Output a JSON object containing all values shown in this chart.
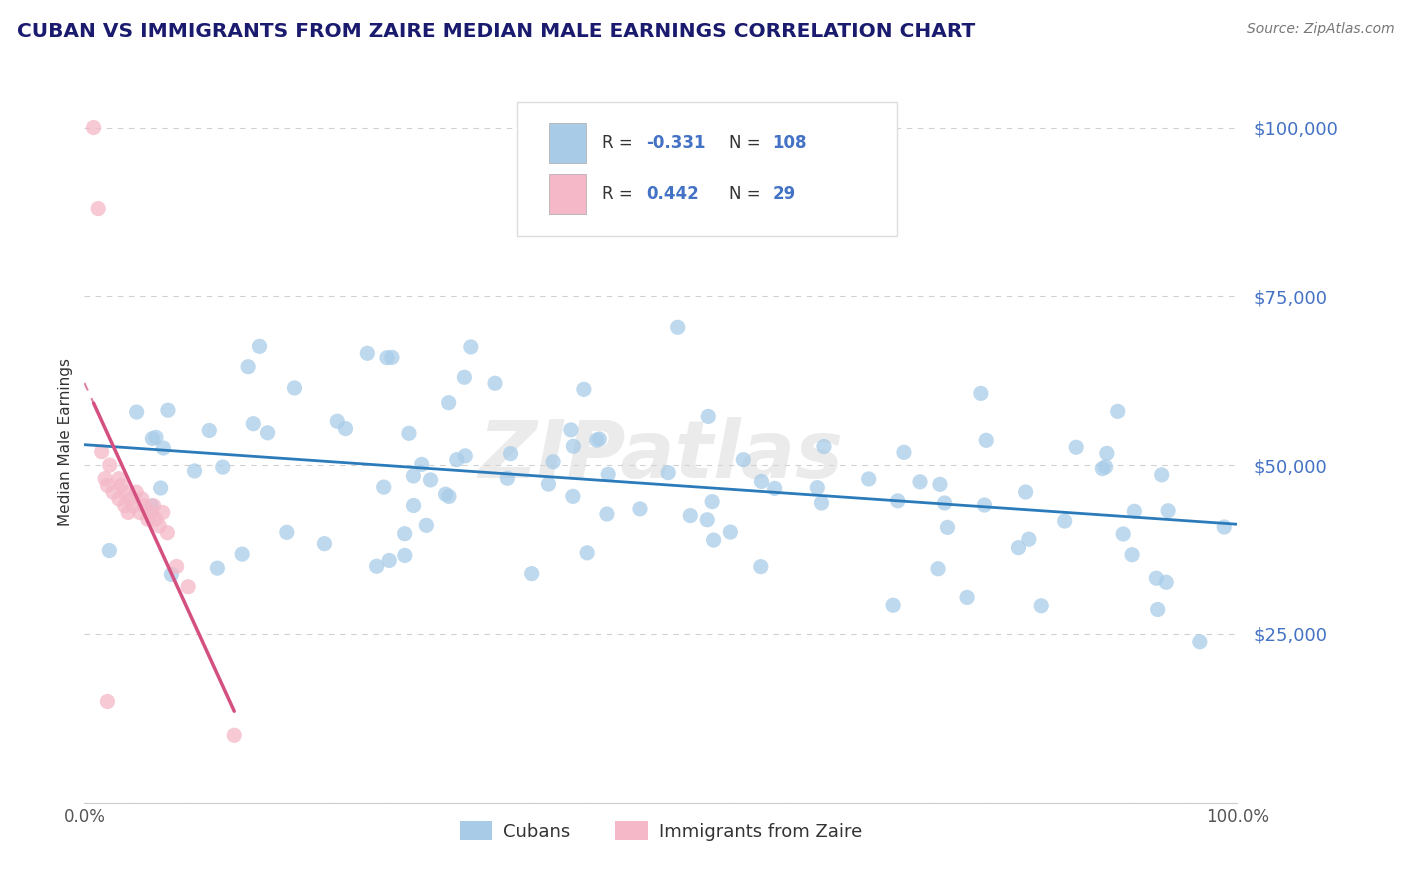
{
  "title": "CUBAN VS IMMIGRANTS FROM ZAIRE MEDIAN MALE EARNINGS CORRELATION CHART",
  "source": "Source: ZipAtlas.com",
  "ylabel": "Median Male Earnings",
  "yticks": [
    0,
    25000,
    50000,
    75000,
    100000
  ],
  "xlim": [
    0.0,
    1.0
  ],
  "ylim": [
    0,
    107000
  ],
  "blue_R": -0.331,
  "blue_N": 108,
  "pink_R": 0.442,
  "pink_N": 29,
  "blue_color": "#a8cce8",
  "pink_color": "#f4b8c8",
  "blue_line_color": "#2b7bba",
  "pink_line_color": "#d45080",
  "legend_label_blue": "Cubans",
  "legend_label_pink": "Immigrants from Zaire",
  "watermark": "ZIPatlas",
  "background_color": "#ffffff",
  "title_color": "#1a1a6e",
  "axis_color": "#4472c4",
  "grid_color": "#cccccc",
  "blue_seed": 77,
  "pink_seed": 99
}
